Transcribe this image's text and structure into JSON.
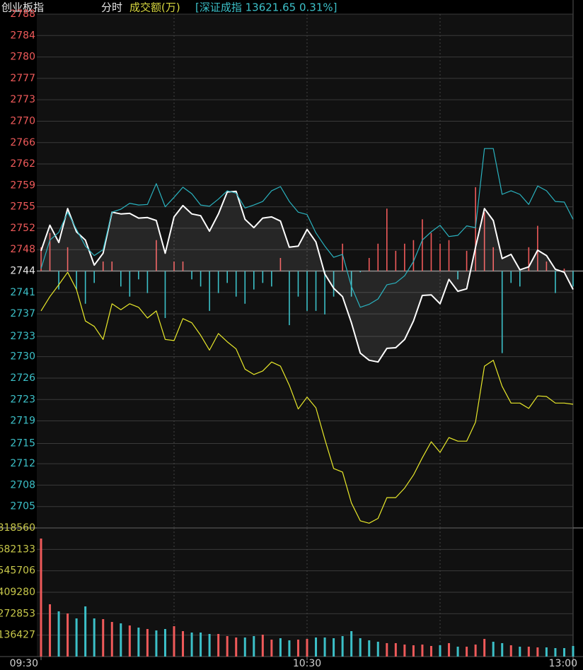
{
  "chart_data": [
    {
      "type": "line",
      "title": "创业板指",
      "subtitle": "分时",
      "annotation": "[深证成指 13621.65 0.31%]",
      "x": [
        0,
        2,
        4,
        6,
        8,
        10,
        12,
        14,
        16,
        18,
        20,
        22,
        24,
        26,
        28,
        30,
        32,
        34,
        36,
        38,
        40,
        42,
        44,
        46,
        48,
        50,
        52,
        54,
        56,
        58,
        60,
        62,
        64,
        66,
        68,
        70,
        72,
        74,
        76,
        78,
        80,
        82,
        84,
        86,
        88,
        90,
        92,
        94,
        96,
        98,
        100,
        102,
        104,
        106,
        108,
        110,
        112,
        114,
        116,
        118,
        120
      ],
      "xlim": [
        0,
        120
      ],
      "ylim": [
        2701.2,
        2787.6
      ],
      "yticks": [
        {
          "value": 2787.6,
          "label": "2788"
        },
        {
          "value": 2784.0,
          "label": "2784"
        },
        {
          "value": 2780.4,
          "label": "2780"
        },
        {
          "value": 2776.8,
          "label": "2777"
        },
        {
          "value": 2773.2,
          "label": "2773"
        },
        {
          "value": 2769.6,
          "label": "2770"
        },
        {
          "value": 2766.0,
          "label": "2766"
        },
        {
          "value": 2762.4,
          "label": "2762"
        },
        {
          "value": 2758.8,
          "label": "2759"
        },
        {
          "value": 2755.2,
          "label": "2755"
        },
        {
          "value": 2751.6,
          "label": "2752"
        },
        {
          "value": 2748.0,
          "label": "2748"
        },
        {
          "value": 2744.4,
          "label": "2744"
        },
        {
          "value": 2740.8,
          "label": "2741"
        },
        {
          "value": 2737.2,
          "label": "2737"
        },
        {
          "value": 2733.4,
          "label": "2733"
        },
        {
          "value": 2730.0,
          "label": "2730"
        },
        {
          "value": 2726.4,
          "label": "2726"
        },
        {
          "value": 2722.8,
          "label": "2723"
        },
        {
          "value": 2719.2,
          "label": "2719"
        },
        {
          "value": 2715.4,
          "label": "2715"
        },
        {
          "value": 2712.0,
          "label": "2712"
        },
        {
          "value": 2708.4,
          "label": "2708"
        },
        {
          "value": 2704.8,
          "label": "2705"
        }
      ],
      "baseline": 2744.4,
      "grid": true,
      "up_color": "#f05a5a",
      "down_color": "#3cc0c8",
      "series": [
        {
          "type": "line",
          "color": "#ffffff",
          "area": true,
          "values": [
            2747.8,
            2752.1,
            2749.2,
            2754.9,
            2751.0,
            2749.6,
            2745.4,
            2747.4,
            2754.3,
            2754.0,
            2754.1,
            2753.3,
            2753.4,
            2752.9,
            2747.4,
            2753.5,
            2755.4,
            2754.0,
            2753.7,
            2751.1,
            2754.0,
            2757.7,
            2757.8,
            2753.1,
            2751.7,
            2753.3,
            2753.5,
            2752.8,
            2748.4,
            2748.6,
            2751.4,
            2749.3,
            2743.9,
            2741.5,
            2740.1,
            2735.7,
            2730.6,
            2729.4,
            2729.1,
            2731.4,
            2731.5,
            2732.9,
            2736.0,
            2740.3,
            2740.4,
            2738.9,
            2743.0,
            2741.0,
            2741.4,
            2748.4,
            2754.9,
            2752.9,
            2746.5,
            2747.2,
            2744.6,
            2745.1,
            2747.9,
            2747.0,
            2744.7,
            2744.2,
            2741.3
          ]
        },
        {
          "type": "line",
          "color": "#2ab3c0",
          "values": [
            2744.8,
            2749.6,
            2750.9,
            2754.3,
            2751.4,
            2748.6,
            2747.0,
            2748.0,
            2754.3,
            2754.8,
            2755.8,
            2755.5,
            2755.6,
            2759.1,
            2755.2,
            2756.8,
            2758.5,
            2757.4,
            2755.5,
            2755.3,
            2756.5,
            2757.9,
            2757.5,
            2755.0,
            2755.5,
            2756.1,
            2757.9,
            2758.6,
            2756.1,
            2754.3,
            2753.9,
            2750.8,
            2748.6,
            2746.7,
            2747.2,
            2741.8,
            2738.3,
            2738.8,
            2739.7,
            2742.1,
            2742.4,
            2743.6,
            2746.0,
            2749.6,
            2751.0,
            2752.1,
            2750.2,
            2750.4,
            2752.0,
            2751.7,
            2765.0,
            2765.0,
            2757.3,
            2757.9,
            2757.3,
            2755.6,
            2758.7,
            2757.9,
            2756.1,
            2756.0,
            2753.1
          ]
        },
        {
          "type": "line",
          "color": "#e8e82a",
          "values": [
            2737.7,
            2740.1,
            2742.1,
            2744.2,
            2741.3,
            2736.0,
            2735.1,
            2732.9,
            2738.9,
            2737.9,
            2738.9,
            2738.3,
            2736.5,
            2737.7,
            2732.9,
            2732.7,
            2736.4,
            2735.7,
            2733.6,
            2731.1,
            2733.9,
            2732.5,
            2731.3,
            2727.9,
            2727.0,
            2727.6,
            2729.1,
            2728.4,
            2725.2,
            2721.2,
            2723.2,
            2721.4,
            2716.1,
            2711.2,
            2710.6,
            2705.4,
            2702.4,
            2702.0,
            2702.8,
            2706.3,
            2706.3,
            2707.9,
            2710.1,
            2713.0,
            2715.7,
            2713.9,
            2716.4,
            2715.8,
            2715.8,
            2719.0,
            2728.4,
            2729.4,
            2725.0,
            2722.2,
            2722.2,
            2721.3,
            2723.4,
            2723.3,
            2722.2,
            2722.2,
            2722.0
          ]
        },
        {
          "type": "bar",
          "values": [
            2748.4,
            2750.8,
            2741.3,
            2748.4,
            2741.3,
            2738.9,
            2742.4,
            2746.0,
            2746.0,
            2741.8,
            2740.1,
            2743.0,
            2740.7,
            2749.6,
            2736.5,
            2746.0,
            2746.0,
            2743.0,
            2741.8,
            2737.7,
            2740.7,
            2742.4,
            2740.1,
            2738.9,
            2741.3,
            2742.4,
            2741.8,
            2746.6,
            2735.3,
            2740.1,
            2737.7,
            2737.7,
            2737.1,
            2740.1,
            2749.0,
            2740.1,
            2744.2,
            2746.6,
            2749.0,
            2754.9,
            2747.8,
            2749.0,
            2749.6,
            2753.1,
            2750.8,
            2749.0,
            2749.6,
            2743.0,
            2747.8,
            2758.5,
            2754.3,
            2748.4,
            2730.6,
            2742.4,
            2741.8,
            2748.4,
            2752.0,
            2746.0,
            2740.7,
            2744.8,
            2741.8
          ]
        }
      ]
    },
    {
      "type": "bar",
      "title": "成交额(万)",
      "x": [
        0,
        2,
        4,
        6,
        8,
        10,
        12,
        14,
        16,
        18,
        20,
        22,
        24,
        26,
        28,
        30,
        32,
        34,
        36,
        38,
        40,
        42,
        44,
        46,
        48,
        50,
        52,
        54,
        56,
        58,
        60,
        62,
        64,
        66,
        68,
        70,
        72,
        74,
        76,
        78,
        80,
        82,
        84,
        86,
        88,
        90,
        92,
        94,
        96,
        98,
        100,
        102,
        104,
        106,
        108,
        110,
        112,
        114,
        116,
        118,
        120
      ],
      "xlim": [
        0,
        120
      ],
      "xticks": [
        {
          "value": 0,
          "label": "09:30"
        },
        {
          "value": 60,
          "label": "10:30"
        },
        {
          "value": 120,
          "label": "13:00"
        }
      ],
      "ylim": [
        0,
        818560
      ],
      "yticks": [
        818560,
        682133,
        545706,
        409280,
        272853,
        136427
      ],
      "grid": true,
      "label_color": "#c8c84a",
      "up_color": "#f05a5a",
      "down_color": "#3cc0c8",
      "values": [
        751100,
        332800,
        287800,
        274400,
        242900,
        319300,
        242900,
        238400,
        220400,
        211400,
        197900,
        184400,
        175400,
        166400,
        175400,
        193400,
        161900,
        152900,
        152900,
        143900,
        143900,
        130400,
        121400,
        121400,
        130400,
        139400,
        107900,
        116900,
        103400,
        107900,
        112400,
        121400,
        121400,
        116900,
        130400,
        161900,
        116900,
        103400,
        94400,
        85500,
        85500,
        76500,
        72000,
        76500,
        67500,
        72000,
        85500,
        63000,
        63000,
        76500,
        112400,
        94400,
        85500,
        72000,
        63000,
        63000,
        58500,
        58500,
        54000,
        54000,
        67500
      ]
    }
  ]
}
